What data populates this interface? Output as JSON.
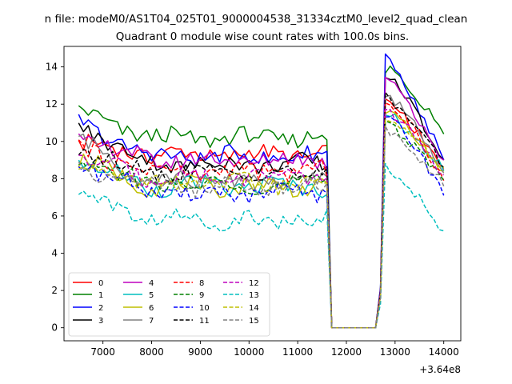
{
  "figure": {
    "suptitle": "n file: modeM0/AS1T04_025T01_9000004538_31334cztM0_level2_quad_clean",
    "title": "Quadrant 0 module wise count rates with 100.0s bins.",
    "x_offset_label": "+3.64e8"
  },
  "chart_data": {
    "type": "line",
    "title": "Quadrant 0 module wise count rates with 100.0s bins.",
    "xlabel": "",
    "ylabel": "",
    "x_offset": 364000000,
    "xlim": [
      6200,
      14350
    ],
    "ylim": [
      -0.7,
      15.1
    ],
    "xticks": [
      7000,
      8000,
      9000,
      10000,
      11000,
      12000,
      13000,
      14000
    ],
    "yticks": [
      0,
      2,
      4,
      6,
      8,
      10,
      12,
      14
    ],
    "grid": false,
    "legend_position": "lower-left",
    "legend_columns": 4,
    "gap": {
      "drop_start": 11600,
      "zero_from": 11700,
      "zero_to": 12600,
      "rise_end": 12800
    },
    "x_start": 6500,
    "x_end": 14000,
    "x_step": 100,
    "series": [
      {
        "name": "0",
        "color": "#ff0000",
        "dash": "solid",
        "pre_level": 9.3,
        "pre_start": 9.9,
        "post_start": 12.2,
        "post_end": 8.5
      },
      {
        "name": "1",
        "color": "#008000",
        "dash": "solid",
        "pre_level": 10.2,
        "pre_start": 11.6,
        "post_start": 13.9,
        "post_end": 10.4
      },
      {
        "name": "2",
        "color": "#0000ff",
        "dash": "solid",
        "pre_level": 9.2,
        "pre_start": 11.0,
        "post_start": 14.4,
        "post_end": 9.0
      },
      {
        "name": "3",
        "color": "#000000",
        "dash": "solid",
        "pre_level": 8.8,
        "pre_start": 10.9,
        "post_start": 13.5,
        "post_end": 9.0
      },
      {
        "name": "4",
        "color": "#bf00bf",
        "dash": "solid",
        "pre_level": 9.0,
        "pre_start": 10.2,
        "post_start": 13.3,
        "post_end": 9.0
      },
      {
        "name": "5",
        "color": "#00bfbf",
        "dash": "solid",
        "pre_level": 7.6,
        "pre_start": 8.9,
        "post_start": 11.5,
        "post_end": 8.4
      },
      {
        "name": "6",
        "color": "#bfbf00",
        "dash": "solid",
        "pre_level": 7.6,
        "pre_start": 9.0,
        "post_start": 11.6,
        "post_end": 8.4
      },
      {
        "name": "7",
        "color": "#808080",
        "dash": "solid",
        "pre_level": 7.9,
        "pre_start": 10.1,
        "post_start": 12.6,
        "post_end": 8.3
      },
      {
        "name": "8",
        "color": "#ff0000",
        "dash": "dashed",
        "pre_level": 8.4,
        "pre_start": 9.6,
        "post_start": 12.3,
        "post_end": 7.9
      },
      {
        "name": "9",
        "color": "#008000",
        "dash": "dashed",
        "pre_level": 7.7,
        "pre_start": 8.9,
        "post_start": 11.0,
        "post_end": 7.9
      },
      {
        "name": "10",
        "color": "#0000ff",
        "dash": "dashed",
        "pre_level": 7.2,
        "pre_start": 9.0,
        "post_start": 11.4,
        "post_end": 7.1
      },
      {
        "name": "11",
        "color": "#000000",
        "dash": "dashed",
        "pre_level": 8.3,
        "pre_start": 9.4,
        "post_start": 12.4,
        "post_end": 8.6
      },
      {
        "name": "12",
        "color": "#bf00bf",
        "dash": "dashed",
        "pre_level": 8.1,
        "pre_start": 9.1,
        "post_start": 11.7,
        "post_end": 8.2
      },
      {
        "name": "13",
        "color": "#00bfbf",
        "dash": "dashed",
        "pre_level": 5.8,
        "pre_start": 7.3,
        "post_start": 8.6,
        "post_end": 5.2
      },
      {
        "name": "14",
        "color": "#bfbf00",
        "dash": "dashed",
        "pre_level": 7.7,
        "pre_start": 8.7,
        "post_start": 11.3,
        "post_end": 8.6
      },
      {
        "name": "15",
        "color": "#808080",
        "dash": "dashed",
        "pre_level": 7.6,
        "pre_start": 8.6,
        "post_start": 10.6,
        "post_end": 7.6
      }
    ]
  }
}
